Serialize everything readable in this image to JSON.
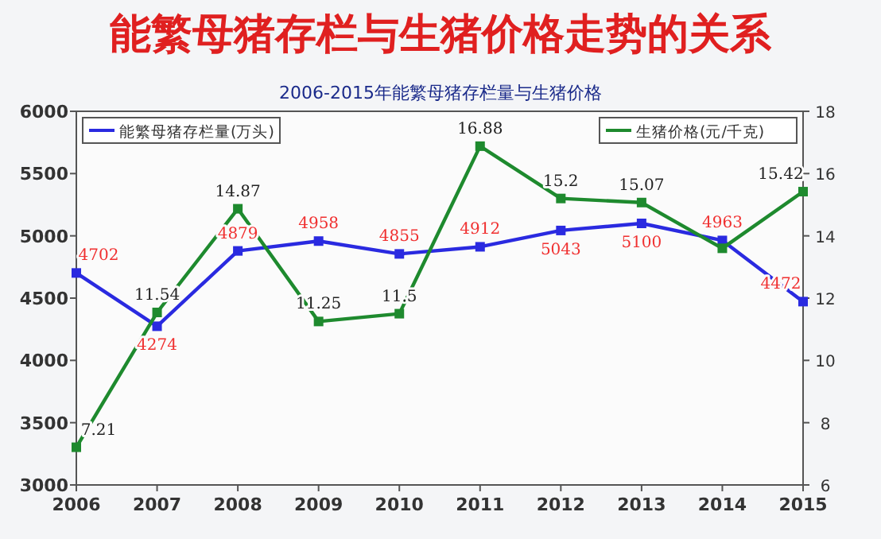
{
  "chart_data": {
    "type": "line",
    "title": "能繁母猪存栏与生猪价格走势的关系",
    "subtitle": "2006-2015年能繁母猪存栏量与生猪价格",
    "categories": [
      "2006",
      "2007",
      "2008",
      "2009",
      "2010",
      "2011",
      "2012",
      "2013",
      "2014",
      "2015"
    ],
    "series": [
      {
        "name": "能繁母猪存栏量(万头)",
        "color": "#2a2ae0",
        "values": [
          4702,
          4274,
          4879,
          4958,
          4855,
          4912,
          5043,
          5100,
          4963,
          4472
        ],
        "value_labels": [
          "4702",
          "4274",
          "4879",
          "4958",
          "4855",
          "4912",
          "5043",
          "5100",
          "4963",
          "4472"
        ]
      },
      {
        "name": "生猪价格(元/千克)",
        "color": "#1e8a2e",
        "axis": "y2",
        "values": [
          7.21,
          11.54,
          14.87,
          11.25,
          11.5,
          16.88,
          15.2,
          15.07,
          13.6,
          15.42
        ],
        "value_labels": [
          "7.21",
          "11.54",
          "14.87",
          "11.25",
          "11.5",
          "16.88",
          "15.2",
          "15.07",
          null,
          "15.42"
        ]
      }
    ],
    "ylim": [
      3000,
      6000
    ],
    "yticks": [
      3000,
      3500,
      4000,
      4500,
      5000,
      5500,
      6000
    ],
    "y2lim": [
      6,
      18
    ],
    "y2ticks": [
      6,
      8,
      10,
      12,
      14,
      16,
      18
    ],
    "marker": "square",
    "line_style": "solid",
    "legend": "top",
    "grid": false
  }
}
